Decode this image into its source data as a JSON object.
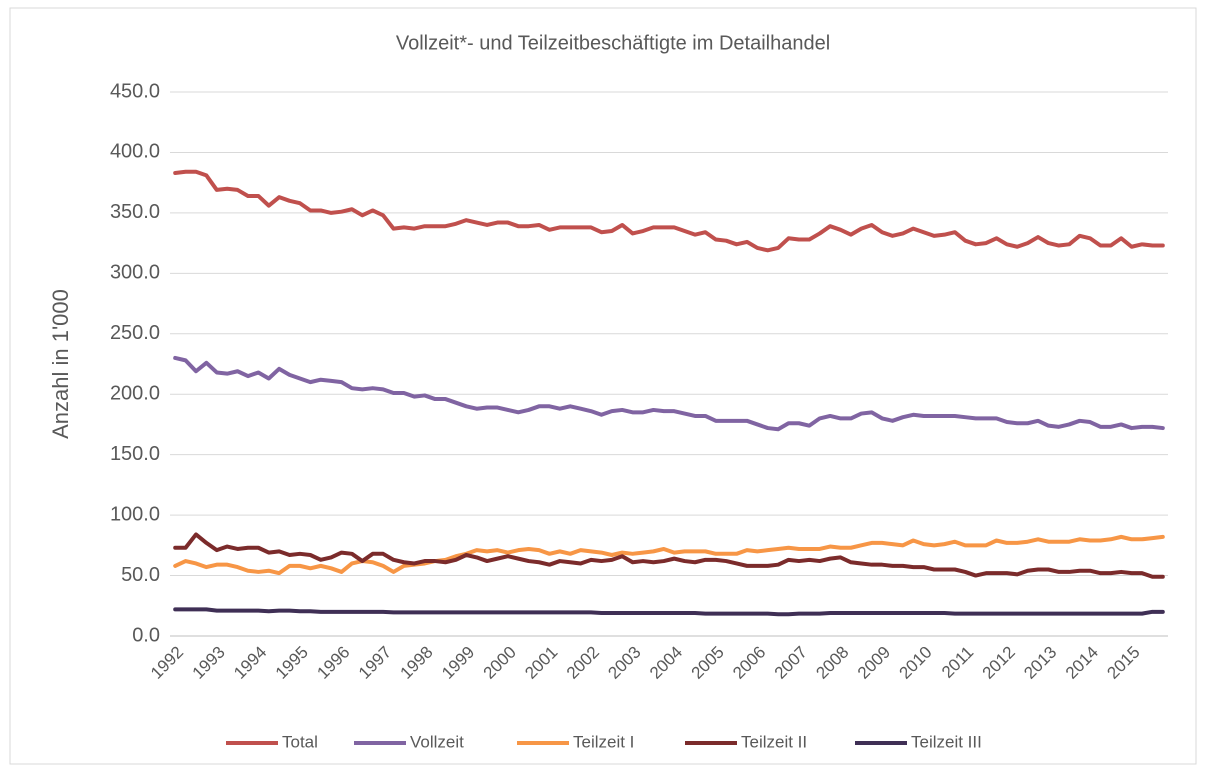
{
  "chart_data": {
    "type": "line",
    "title": "Vollzeit*- und Teilzeitbeschäftigte im Detailhandel",
    "y_label": "Anzahl in 1'000",
    "categories": [
      "1992",
      null,
      null,
      null,
      "1993",
      null,
      null,
      null,
      "1994",
      null,
      null,
      null,
      "1995",
      null,
      null,
      null,
      "1996",
      null,
      null,
      null,
      "1997",
      null,
      null,
      null,
      "1998",
      null,
      null,
      null,
      "1999",
      null,
      null,
      null,
      "2000",
      null,
      null,
      null,
      "2001",
      null,
      null,
      null,
      "2002",
      null,
      null,
      null,
      "2003",
      null,
      null,
      null,
      "2004",
      null,
      null,
      null,
      "2005",
      null,
      null,
      null,
      "2006",
      null,
      null,
      null,
      "2007",
      null,
      null,
      null,
      "2008",
      null,
      null,
      null,
      "2009",
      null,
      null,
      null,
      "2010",
      null,
      null,
      null,
      "2011",
      null,
      null,
      null,
      "2012",
      null,
      null,
      null,
      "2013",
      null,
      null,
      null,
      "2014",
      null,
      null,
      null,
      "2015",
      null,
      null,
      null
    ],
    "ylim": [
      0,
      450
    ],
    "yticks": [
      {
        "value": 0,
        "label": "0.0"
      },
      {
        "value": 50,
        "label": "50.0"
      },
      {
        "value": 100,
        "label": "100.0"
      },
      {
        "value": 150,
        "label": "150.0"
      },
      {
        "value": 200,
        "label": "200.0"
      },
      {
        "value": 250,
        "label": "250.0"
      },
      {
        "value": 300,
        "label": "300.0"
      },
      {
        "value": 350,
        "label": "350.0"
      },
      {
        "value": 400,
        "label": "400.0"
      },
      {
        "value": 450,
        "label": "450.0"
      }
    ],
    "grid": true,
    "legend": "bottom",
    "series": [
      {
        "name": "Total",
        "color": "#c0504d",
        "values": [
          383,
          384,
          384,
          381,
          369,
          370,
          369,
          364,
          364,
          356,
          363,
          360,
          358,
          352,
          352,
          350,
          351,
          353,
          348,
          352,
          348,
          337,
          338,
          337,
          339,
          339,
          339,
          341,
          344,
          342,
          340,
          342,
          342,
          339,
          339,
          340,
          336,
          338,
          338,
          338,
          338,
          334,
          335,
          340,
          333,
          335,
          338,
          338,
          338,
          335,
          332,
          334,
          328,
          327,
          324,
          326,
          321,
          319,
          321,
          329,
          328,
          328,
          333,
          339,
          336,
          332,
          337,
          340,
          334,
          331,
          333,
          337,
          334,
          331,
          332,
          334,
          327,
          324,
          325,
          329,
          324,
          322,
          325,
          330,
          325,
          323,
          324,
          331,
          329,
          323,
          323,
          329,
          322,
          324,
          323,
          323
        ]
      },
      {
        "name": "Vollzeit",
        "color": "#8064a2",
        "values": [
          230,
          228,
          219,
          226,
          218,
          217,
          219,
          215,
          218,
          213,
          221,
          216,
          213,
          210,
          212,
          211,
          210,
          205,
          204,
          205,
          204,
          201,
          201,
          198,
          199,
          196,
          196,
          193,
          190,
          188,
          189,
          189,
          187,
          185,
          187,
          190,
          190,
          188,
          190,
          188,
          186,
          183,
          186,
          187,
          185,
          185,
          187,
          186,
          186,
          184,
          182,
          182,
          178,
          178,
          178,
          178,
          175,
          172,
          171,
          176,
          176,
          174,
          180,
          182,
          180,
          180,
          184,
          185,
          180,
          178,
          181,
          183,
          182,
          182,
          182,
          182,
          181,
          180,
          180,
          180,
          177,
          176,
          176,
          178,
          174,
          173,
          175,
          178,
          177,
          173,
          173,
          175,
          172,
          173,
          173,
          172
        ]
      },
      {
        "name": "Teilzeit I",
        "color": "#f79646",
        "values": [
          58,
          62,
          60,
          57,
          59,
          59,
          57,
          54,
          53,
          54,
          52,
          58,
          58,
          56,
          58,
          56,
          53,
          60,
          62,
          61,
          58,
          53,
          58,
          59,
          60,
          62,
          63,
          66,
          68,
          71,
          70,
          71,
          69,
          71,
          72,
          71,
          68,
          70,
          68,
          71,
          70,
          69,
          67,
          69,
          68,
          69,
          70,
          72,
          69,
          70,
          70,
          70,
          68,
          68,
          68,
          71,
          70,
          71,
          72,
          73,
          72,
          72,
          72,
          74,
          73,
          73,
          75,
          77,
          77,
          76,
          75,
          79,
          76,
          75,
          76,
          78,
          75,
          75,
          75,
          79,
          77,
          77,
          78,
          80,
          78,
          78,
          78,
          80,
          79,
          79,
          80,
          82,
          80,
          80,
          81,
          82
        ]
      },
      {
        "name": "Teilzeit II",
        "color": "#7b2b2b",
        "values": [
          73,
          73,
          84,
          77,
          71,
          74,
          72,
          73,
          73,
          69,
          70,
          67,
          68,
          67,
          63,
          65,
          69,
          68,
          62,
          68,
          68,
          63,
          61,
          60,
          62,
          62,
          61,
          63,
          67,
          65,
          62,
          64,
          66,
          64,
          62,
          61,
          59,
          62,
          61,
          60,
          63,
          62,
          63,
          66,
          61,
          62,
          61,
          62,
          64,
          62,
          61,
          63,
          63,
          62,
          60,
          58,
          58,
          58,
          59,
          63,
          62,
          63,
          62,
          64,
          65,
          61,
          60,
          59,
          59,
          58,
          58,
          57,
          57,
          55,
          55,
          55,
          53,
          50,
          52,
          52,
          52,
          51,
          54,
          55,
          55,
          53,
          53,
          54,
          54,
          52,
          52,
          53,
          52,
          52,
          49,
          49
        ]
      },
      {
        "name": "Teilzeit III",
        "color": "#3f2f55",
        "values": [
          22,
          22,
          22,
          22,
          21,
          21,
          21,
          21,
          21,
          20.5,
          21,
          21,
          20.5,
          20.5,
          20,
          20,
          20,
          20,
          20,
          20,
          20,
          19.5,
          19.5,
          19.5,
          19.5,
          19.5,
          19.5,
          19.5,
          19.5,
          19.5,
          19.5,
          19.5,
          19.5,
          19.5,
          19.5,
          19.5,
          19.5,
          19.5,
          19.5,
          19.5,
          19.5,
          19,
          19,
          19,
          19,
          19,
          19,
          19,
          19,
          19,
          19,
          18.5,
          18.5,
          18.5,
          18.5,
          18.5,
          18.5,
          18.5,
          18,
          18,
          18.5,
          18.5,
          18.5,
          19,
          19,
          19,
          19,
          19,
          19,
          19,
          19,
          19,
          19,
          19,
          19,
          18.5,
          18.5,
          18.5,
          18.5,
          18.5,
          18.5,
          18.5,
          18.5,
          18.5,
          18.5,
          18.5,
          18.5,
          18.5,
          18.5,
          18.5,
          18.5,
          18.5,
          18.5,
          18.5,
          20,
          20
        ]
      }
    ]
  }
}
